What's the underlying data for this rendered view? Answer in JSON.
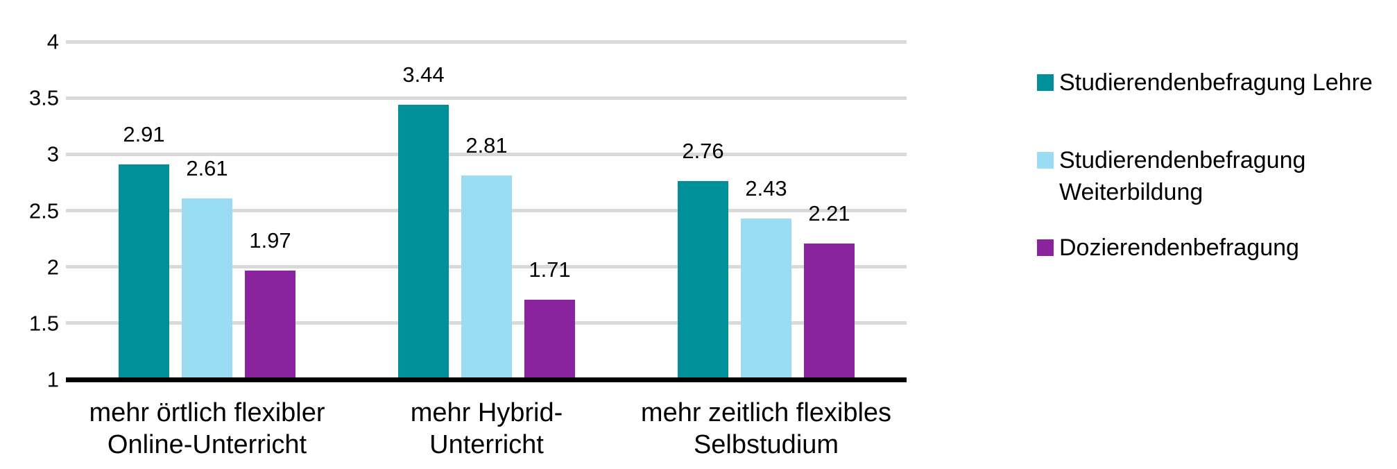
{
  "chart_data": {
    "type": "bar",
    "title": "",
    "xlabel": "",
    "ylabel": "",
    "background": "#FFFFFF",
    "categories": [
      "mehr örtlich flexibler Online-Unterricht",
      "mehr Hybrid-Unterricht",
      "mehr zeitlich flexibles Selbstudium"
    ],
    "category_lines": [
      [
        "mehr örtlich flexibler",
        "Online-Unterricht"
      ],
      [
        "mehr Hybrid-",
        "Unterricht"
      ],
      [
        "mehr zeitlich flexibles",
        "Selbstudium"
      ]
    ],
    "series": [
      {
        "name": "Studierendenbefragung Lehre",
        "legend_lines": [
          "Studierendenbefragung Lehre"
        ],
        "color": "#00909A",
        "values": [
          2.91,
          3.44,
          2.76
        ],
        "value_labels": [
          "2.91",
          "3.44",
          "2.76"
        ]
      },
      {
        "name": "Studierendenbefragung Weiterbildung",
        "legend_lines": [
          "Studierendenbefragung",
          "Weiterbildung"
        ],
        "color": "#9ADCF2",
        "values": [
          2.61,
          2.81,
          2.43
        ],
        "value_labels": [
          "2.61",
          "2.81",
          "2.43"
        ]
      },
      {
        "name": "Dozierendenbefragung",
        "legend_lines": [
          "Dozierendenbefragung"
        ],
        "color": "#8A239E",
        "values": [
          1.97,
          1.71,
          2.21
        ],
        "value_labels": [
          "1.97",
          "1.71",
          "2.21"
        ]
      }
    ],
    "y_axis": {
      "min": 1,
      "max": 4,
      "ticks": [
        "4",
        "3.5",
        "3",
        "2.5",
        "2",
        "1.5",
        "1"
      ]
    },
    "grid": {
      "show": true,
      "color": "#D9D9D9",
      "baseline_color": "#000000"
    },
    "legend": {
      "position": "right"
    }
  }
}
